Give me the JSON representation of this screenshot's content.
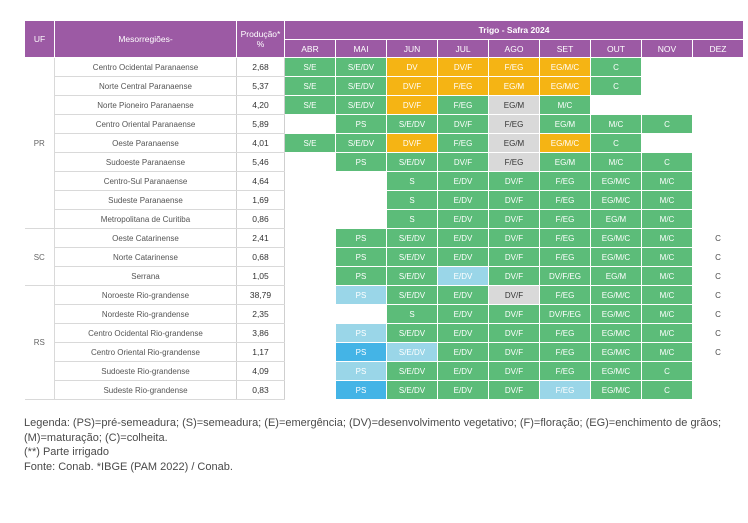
{
  "header": {
    "uf": "UF",
    "meso": "Mesorregiões-",
    "prod": "Produção* %",
    "group": "Trigo - Safra 2024",
    "months": [
      "ABR",
      "MAI",
      "JUN",
      "JUL",
      "AGO",
      "SET",
      "OUT",
      "NOV",
      "DEZ"
    ]
  },
  "colors": {
    "header_purple": "#9c5aa4",
    "green": "#5cbc79",
    "orange": "#f5b414",
    "gray": "#d9d9d9",
    "light_blue": "#9ad6e8",
    "blue": "#44b4e6"
  },
  "groups": [
    {
      "uf": "PR",
      "rows": [
        {
          "meso": "Centro Ocidental Paranaense",
          "prod": "2,68",
          "cells": [
            {
              "t": "S/E",
              "c": "g"
            },
            {
              "t": "S/E/DV",
              "c": "g"
            },
            {
              "t": "DV",
              "c": "o"
            },
            {
              "t": "DV/F",
              "c": "o"
            },
            {
              "t": "F/EG",
              "c": "o"
            },
            {
              "t": "EG/M/C",
              "c": "o"
            },
            {
              "t": "C",
              "c": "g"
            },
            {
              "t": "",
              "c": "e"
            },
            {
              "t": "",
              "c": "e"
            }
          ]
        },
        {
          "meso": "Norte Central Paranaense",
          "prod": "5,37",
          "cells": [
            {
              "t": "S/E",
              "c": "g"
            },
            {
              "t": "S/E/DV",
              "c": "g"
            },
            {
              "t": "DV/F",
              "c": "o"
            },
            {
              "t": "F/EG",
              "c": "o"
            },
            {
              "t": "EG/M",
              "c": "o"
            },
            {
              "t": "EG/M/C",
              "c": "o"
            },
            {
              "t": "C",
              "c": "g"
            },
            {
              "t": "",
              "c": "e"
            },
            {
              "t": "",
              "c": "e"
            }
          ]
        },
        {
          "meso": "Norte Pioneiro Paranaense",
          "prod": "4,20",
          "cells": [
            {
              "t": "S/E",
              "c": "g"
            },
            {
              "t": "S/E/DV",
              "c": "g"
            },
            {
              "t": "DV/F",
              "c": "o"
            },
            {
              "t": "F/EG",
              "c": "g"
            },
            {
              "t": "EG/M",
              "c": "y"
            },
            {
              "t": "M/C",
              "c": "g"
            },
            {
              "t": "",
              "c": "e"
            },
            {
              "t": "",
              "c": "e"
            },
            {
              "t": "",
              "c": "e"
            }
          ]
        },
        {
          "meso": "Centro Oriental Paranaense",
          "prod": "5,89",
          "cells": [
            {
              "t": "",
              "c": "e"
            },
            {
              "t": "PS",
              "c": "g"
            },
            {
              "t": "S/E/DV",
              "c": "g"
            },
            {
              "t": "DV/F",
              "c": "g"
            },
            {
              "t": "F/EG",
              "c": "y"
            },
            {
              "t": "EG/M",
              "c": "g"
            },
            {
              "t": "M/C",
              "c": "g"
            },
            {
              "t": "C",
              "c": "g"
            },
            {
              "t": "",
              "c": "e"
            }
          ]
        },
        {
          "meso": "Oeste Paranaense",
          "prod": "4,01",
          "cells": [
            {
              "t": "S/E",
              "c": "g"
            },
            {
              "t": "S/E/DV",
              "c": "g"
            },
            {
              "t": "DV/F",
              "c": "o"
            },
            {
              "t": "F/EG",
              "c": "g"
            },
            {
              "t": "EG/M",
              "c": "y"
            },
            {
              "t": "EG/M/C",
              "c": "o"
            },
            {
              "t": "C",
              "c": "g"
            },
            {
              "t": "",
              "c": "e"
            },
            {
              "t": "",
              "c": "e"
            }
          ]
        },
        {
          "meso": "Sudoeste Paranaense",
          "prod": "5,46",
          "cells": [
            {
              "t": "",
              "c": "e"
            },
            {
              "t": "PS",
              "c": "g"
            },
            {
              "t": "S/E/DV",
              "c": "g"
            },
            {
              "t": "DV/F",
              "c": "g"
            },
            {
              "t": "F/EG",
              "c": "y"
            },
            {
              "t": "EG/M",
              "c": "g"
            },
            {
              "t": "M/C",
              "c": "g"
            },
            {
              "t": "C",
              "c": "g"
            },
            {
              "t": "",
              "c": "e"
            }
          ]
        },
        {
          "meso": "Centro-Sul Paranaense",
          "prod": "4,64",
          "cells": [
            {
              "t": "",
              "c": "e"
            },
            {
              "t": "",
              "c": "e"
            },
            {
              "t": "S",
              "c": "g"
            },
            {
              "t": "E/DV",
              "c": "g"
            },
            {
              "t": "DV/F",
              "c": "g"
            },
            {
              "t": "F/EG",
              "c": "g"
            },
            {
              "t": "EG/M/C",
              "c": "g"
            },
            {
              "t": "M/C",
              "c": "g"
            },
            {
              "t": "",
              "c": "e"
            }
          ]
        },
        {
          "meso": "Sudeste Paranaense",
          "prod": "1,69",
          "cells": [
            {
              "t": "",
              "c": "e"
            },
            {
              "t": "",
              "c": "e"
            },
            {
              "t": "S",
              "c": "g"
            },
            {
              "t": "E/DV",
              "c": "g"
            },
            {
              "t": "DV/F",
              "c": "g"
            },
            {
              "t": "F/EG",
              "c": "g"
            },
            {
              "t": "EG/M/C",
              "c": "g"
            },
            {
              "t": "M/C",
              "c": "g"
            },
            {
              "t": "",
              "c": "e"
            }
          ]
        },
        {
          "meso": "Metropolitana de Curitiba",
          "prod": "0,86",
          "cells": [
            {
              "t": "",
              "c": "e"
            },
            {
              "t": "",
              "c": "e"
            },
            {
              "t": "S",
              "c": "g"
            },
            {
              "t": "E/DV",
              "c": "g"
            },
            {
              "t": "DV/F",
              "c": "g"
            },
            {
              "t": "F/EG",
              "c": "g"
            },
            {
              "t": "EG/M",
              "c": "g"
            },
            {
              "t": "M/C",
              "c": "g"
            },
            {
              "t": "",
              "c": "e"
            }
          ]
        }
      ]
    },
    {
      "uf": "SC",
      "rows": [
        {
          "meso": "Oeste Catarinense",
          "prod": "2,41",
          "cells": [
            {
              "t": "",
              "c": "e"
            },
            {
              "t": "PS",
              "c": "g"
            },
            {
              "t": "S/E/DV",
              "c": "g"
            },
            {
              "t": "E/DV",
              "c": "g"
            },
            {
              "t": "DV/F",
              "c": "g"
            },
            {
              "t": "F/EG",
              "c": "g"
            },
            {
              "t": "EG/M/C",
              "c": "g"
            },
            {
              "t": "M/C",
              "c": "g"
            },
            {
              "t": "C",
              "c": "e"
            }
          ]
        },
        {
          "meso": "Norte Catarinense",
          "prod": "0,68",
          "cells": [
            {
              "t": "",
              "c": "e"
            },
            {
              "t": "PS",
              "c": "g"
            },
            {
              "t": "S/E/DV",
              "c": "g"
            },
            {
              "t": "E/DV",
              "c": "g"
            },
            {
              "t": "DV/F",
              "c": "g"
            },
            {
              "t": "F/EG",
              "c": "g"
            },
            {
              "t": "EG/M/C",
              "c": "g"
            },
            {
              "t": "M/C",
              "c": "g"
            },
            {
              "t": "C",
              "c": "e"
            }
          ]
        },
        {
          "meso": "Serrana",
          "prod": "1,05",
          "cells": [
            {
              "t": "",
              "c": "e"
            },
            {
              "t": "PS",
              "c": "g"
            },
            {
              "t": "S/E/DV",
              "c": "g"
            },
            {
              "t": "E/DV",
              "c": "lb"
            },
            {
              "t": "DV/F",
              "c": "g"
            },
            {
              "t": "DV/F/EG",
              "c": "g"
            },
            {
              "t": "EG/M",
              "c": "g"
            },
            {
              "t": "M/C",
              "c": "g"
            },
            {
              "t": "C",
              "c": "e"
            }
          ]
        }
      ]
    },
    {
      "uf": "RS",
      "rows": [
        {
          "meso": "Noroeste Rio-grandense",
          "prod": "38,79",
          "cells": [
            {
              "t": "",
              "c": "e"
            },
            {
              "t": "PS",
              "c": "lb"
            },
            {
              "t": "S/E/DV",
              "c": "g"
            },
            {
              "t": "E/DV",
              "c": "g"
            },
            {
              "t": "DV/F",
              "c": "y"
            },
            {
              "t": "F/EG",
              "c": "g"
            },
            {
              "t": "EG/M/C",
              "c": "g"
            },
            {
              "t": "M/C",
              "c": "g"
            },
            {
              "t": "C",
              "c": "e"
            }
          ]
        },
        {
          "meso": "Nordeste Rio-grandense",
          "prod": "2,35",
          "cells": [
            {
              "t": "",
              "c": "e"
            },
            {
              "t": "",
              "c": "e"
            },
            {
              "t": "S",
              "c": "g"
            },
            {
              "t": "E/DV",
              "c": "g"
            },
            {
              "t": "DV/F",
              "c": "g"
            },
            {
              "t": "DV/F/EG",
              "c": "g"
            },
            {
              "t": "EG/M/C",
              "c": "g"
            },
            {
              "t": "M/C",
              "c": "g"
            },
            {
              "t": "C",
              "c": "e"
            }
          ]
        },
        {
          "meso": "Centro Ocidental Rio-grandense",
          "prod": "3,86",
          "cells": [
            {
              "t": "",
              "c": "e"
            },
            {
              "t": "PS",
              "c": "lb"
            },
            {
              "t": "S/E/DV",
              "c": "g"
            },
            {
              "t": "E/DV",
              "c": "g"
            },
            {
              "t": "DV/F",
              "c": "g"
            },
            {
              "t": "F/EG",
              "c": "g"
            },
            {
              "t": "EG/M/C",
              "c": "g"
            },
            {
              "t": "M/C",
              "c": "g"
            },
            {
              "t": "C",
              "c": "e"
            }
          ]
        },
        {
          "meso": "Centro Oriental Rio-grandense",
          "prod": "1,17",
          "cells": [
            {
              "t": "",
              "c": "e"
            },
            {
              "t": "PS",
              "c": "b"
            },
            {
              "t": "S/E/DV",
              "c": "lb"
            },
            {
              "t": "E/DV",
              "c": "g"
            },
            {
              "t": "DV/F",
              "c": "g"
            },
            {
              "t": "F/EG",
              "c": "g"
            },
            {
              "t": "EG/M/C",
              "c": "g"
            },
            {
              "t": "M/C",
              "c": "g"
            },
            {
              "t": "C",
              "c": "e"
            }
          ]
        },
        {
          "meso": "Sudoeste Rio-grandense",
          "prod": "4,09",
          "cells": [
            {
              "t": "",
              "c": "e"
            },
            {
              "t": "PS",
              "c": "lb"
            },
            {
              "t": "S/E/DV",
              "c": "g"
            },
            {
              "t": "E/DV",
              "c": "g"
            },
            {
              "t": "DV/F",
              "c": "g"
            },
            {
              "t": "F/EG",
              "c": "g"
            },
            {
              "t": "EG/M/C",
              "c": "g"
            },
            {
              "t": "C",
              "c": "g"
            },
            {
              "t": "",
              "c": "e"
            }
          ]
        },
        {
          "meso": "Sudeste Rio-grandense",
          "prod": "0,83",
          "cells": [
            {
              "t": "",
              "c": "e"
            },
            {
              "t": "PS",
              "c": "b"
            },
            {
              "t": "S/E/DV",
              "c": "g"
            },
            {
              "t": "E/DV",
              "c": "g"
            },
            {
              "t": "DV/F",
              "c": "g"
            },
            {
              "t": "F/EG",
              "c": "lb"
            },
            {
              "t": "EG/M/C",
              "c": "g"
            },
            {
              "t": "C",
              "c": "g"
            },
            {
              "t": "",
              "c": "e"
            }
          ]
        }
      ]
    }
  ],
  "legend": {
    "line1": "Legenda: (PS)=pré-semeadura; (S)=semeadura; (E)=emergência; (DV)=desenvolvimento vegetativo; (F)=floração; (EG)=enchimento de grãos; (M)=maturação; (C)=colheita.",
    "line2": "(**) Parte irrigado",
    "line3": "Fonte: Conab. *IBGE (PAM 2022) / Conab."
  }
}
